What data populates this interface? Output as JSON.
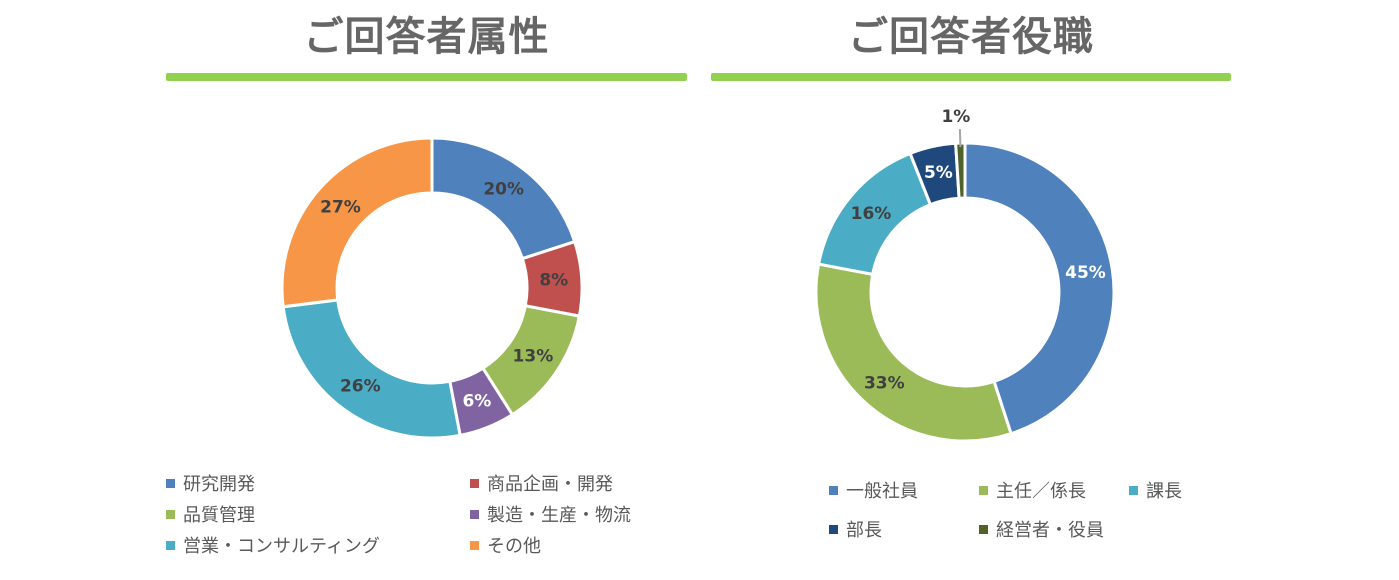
{
  "rule_color": "#92D050",
  "chart_data": [
    {
      "type": "pie",
      "donut": true,
      "title": "ご回答者属性",
      "categories": [
        "研究開発",
        "商品企画・開発",
        "品質管理",
        "製造・生産・物流",
        "営業・コンサルティング",
        "その他"
      ],
      "values": [
        20,
        8,
        13,
        6,
        26,
        27
      ],
      "labels": [
        "20%",
        "8%",
        "13%",
        "6%",
        "26%",
        "27%"
      ],
      "colors": [
        "#4F81BD",
        "#C0504D",
        "#9BBB59",
        "#8064A2",
        "#4BACC6",
        "#F79646"
      ],
      "label_colors": [
        "#404040",
        "#404040",
        "#404040",
        "#ffffff",
        "#404040",
        "#404040"
      ],
      "legend_position": "bottom"
    },
    {
      "type": "pie",
      "donut": true,
      "title": "ご回答者役職",
      "categories": [
        "一般社員",
        "主任／係長",
        "課長",
        "部長",
        "経営者・役員"
      ],
      "values": [
        45,
        33,
        16,
        5,
        1
      ],
      "labels": [
        "45%",
        "33%",
        "16%",
        "5%",
        "1%"
      ],
      "colors": [
        "#4F81BD",
        "#9BBB59",
        "#4BACC6",
        "#1F497D",
        "#4F6228"
      ],
      "label_colors": [
        "#ffffff",
        "#404040",
        "#404040",
        "#ffffff",
        "#404040"
      ],
      "legend_position": "bottom"
    }
  ]
}
